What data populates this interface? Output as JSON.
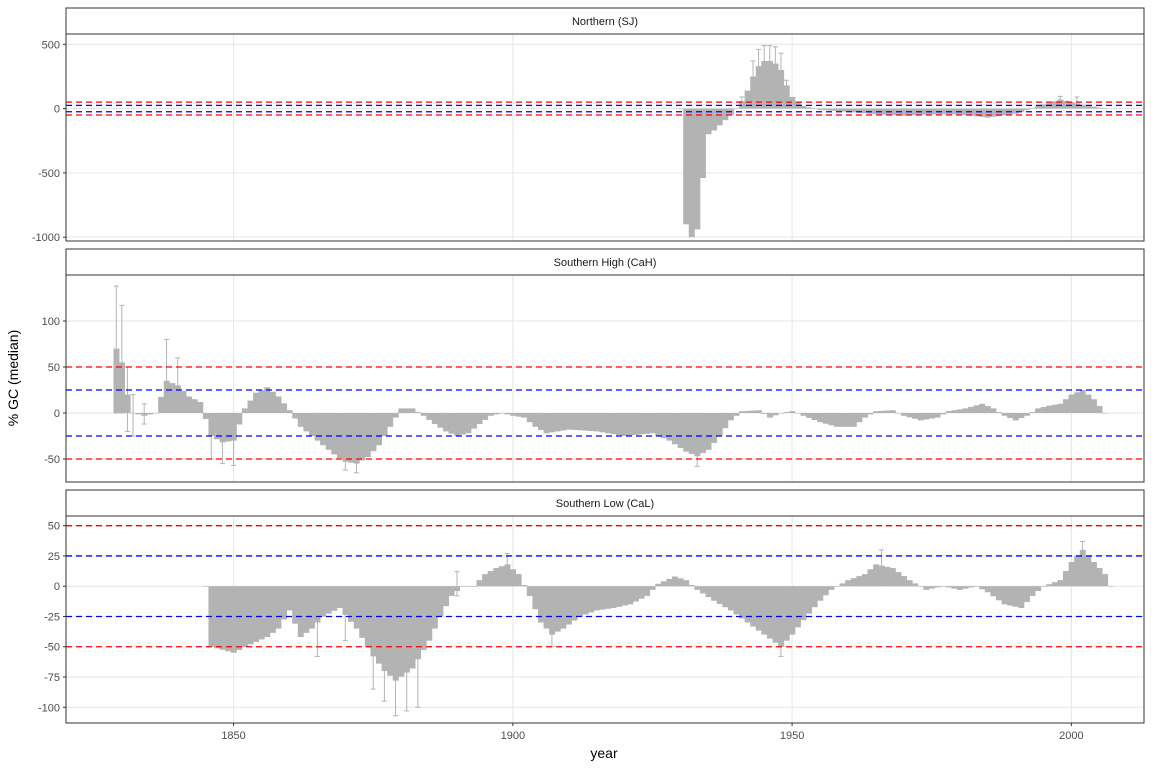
{
  "chart_data": {
    "type": "bar",
    "xlabel": "year",
    "ylabel": "% GC (median)",
    "xlim": [
      1820,
      2013
    ],
    "x_ticks": [
      1850,
      1900,
      1950,
      2000
    ],
    "grid": true,
    "reference_lines": [
      {
        "value": 50,
        "color": "#ff0000"
      },
      {
        "value": 25,
        "color": "#0000ff"
      },
      {
        "value": -25,
        "color": "#0000ff"
      },
      {
        "value": -50,
        "color": "#ff0000"
      }
    ],
    "panels": [
      {
        "title": "Northern (SJ)",
        "ylim": [
          -1030,
          580
        ],
        "y_ticks": [
          500,
          0,
          -500,
          -1000
        ],
        "error_bars": false,
        "segments": [
          {
            "year": 1930,
            "value": 0
          },
          {
            "year": 1931,
            "value": -900
          },
          {
            "year": 1932,
            "value": -1000
          },
          {
            "year": 1933,
            "value": -940
          },
          {
            "year": 1934,
            "value": -540
          },
          {
            "year": 1935,
            "value": -200
          },
          {
            "year": 1936,
            "value": -170
          },
          {
            "year": 1937,
            "value": -130
          },
          {
            "year": 1938,
            "value": -90
          },
          {
            "year": 1939,
            "value": -50
          },
          {
            "year": 1940,
            "value": 0
          },
          {
            "year": 1941,
            "value": 60
          },
          {
            "year": 1942,
            "value": 140
          },
          {
            "year": 1943,
            "value": 250
          },
          {
            "year": 1944,
            "value": 330
          },
          {
            "year": 1945,
            "value": 370
          },
          {
            "year": 1946,
            "value": 370
          },
          {
            "year": 1947,
            "value": 350
          },
          {
            "year": 1948,
            "value": 300
          },
          {
            "year": 1949,
            "value": 180
          },
          {
            "year": 1950,
            "value": 90
          },
          {
            "year": 1952,
            "value": 20
          },
          {
            "year": 1955,
            "value": -10
          },
          {
            "year": 1960,
            "value": -25
          },
          {
            "year": 1965,
            "value": -45
          },
          {
            "year": 1970,
            "value": -55
          },
          {
            "year": 1975,
            "value": -45
          },
          {
            "year": 1980,
            "value": -45
          },
          {
            "year": 1985,
            "value": -70
          },
          {
            "year": 1990,
            "value": -40
          },
          {
            "year": 1994,
            "value": 20
          },
          {
            "year": 1998,
            "value": 70
          },
          {
            "year": 2002,
            "value": 30
          },
          {
            "year": 2006,
            "value": 0
          }
        ],
        "errors": [
          {
            "year": 1941,
            "high": 90
          },
          {
            "year": 1943,
            "high": 370
          },
          {
            "year": 1944,
            "high": 460
          },
          {
            "year": 1945,
            "high": 490
          },
          {
            "year": 1946,
            "high": 490
          },
          {
            "year": 1947,
            "high": 480
          },
          {
            "year": 1948,
            "high": 430
          },
          {
            "year": 1949,
            "high": 220
          },
          {
            "year": 1998,
            "high": 95
          },
          {
            "year": 2001,
            "high": 90
          }
        ]
      },
      {
        "title": "Southern High (CaH)",
        "ylim": [
          -75,
          150
        ],
        "y_ticks": [
          100,
          50,
          0,
          -50
        ],
        "error_bars": true,
        "segments": [
          {
            "year": 1829,
            "value": 70
          },
          {
            "year": 1830,
            "value": 55
          },
          {
            "year": 1831,
            "value": 20
          },
          {
            "year": 1832,
            "value": 0
          },
          {
            "year": 1834,
            "value": -3
          },
          {
            "year": 1836,
            "value": 0
          },
          {
            "year": 1838,
            "value": 35
          },
          {
            "year": 1840,
            "value": 30
          },
          {
            "year": 1842,
            "value": 18
          },
          {
            "year": 1844,
            "value": 12
          },
          {
            "year": 1846,
            "value": -25
          },
          {
            "year": 1848,
            "value": -32
          },
          {
            "year": 1850,
            "value": -30
          },
          {
            "year": 1852,
            "value": 5
          },
          {
            "year": 1854,
            "value": 22
          },
          {
            "year": 1856,
            "value": 28
          },
          {
            "year": 1858,
            "value": 18
          },
          {
            "year": 1860,
            "value": 3
          },
          {
            "year": 1862,
            "value": -15
          },
          {
            "year": 1865,
            "value": -30
          },
          {
            "year": 1868,
            "value": -45
          },
          {
            "year": 1870,
            "value": -53
          },
          {
            "year": 1872,
            "value": -55
          },
          {
            "year": 1874,
            "value": -48
          },
          {
            "year": 1876,
            "value": -35
          },
          {
            "year": 1878,
            "value": -15
          },
          {
            "year": 1880,
            "value": 5
          },
          {
            "year": 1882,
            "value": 5
          },
          {
            "year": 1884,
            "value": -3
          },
          {
            "year": 1886,
            "value": -12
          },
          {
            "year": 1888,
            "value": -20
          },
          {
            "year": 1890,
            "value": -25
          },
          {
            "year": 1892,
            "value": -22
          },
          {
            "year": 1894,
            "value": -12
          },
          {
            "year": 1896,
            "value": -3
          },
          {
            "year": 1898,
            "value": 0
          },
          {
            "year": 1900,
            "value": -3
          },
          {
            "year": 1902,
            "value": -5
          },
          {
            "year": 1904,
            "value": -15
          },
          {
            "year": 1906,
            "value": -22
          },
          {
            "year": 1910,
            "value": -18
          },
          {
            "year": 1915,
            "value": -20
          },
          {
            "year": 1920,
            "value": -25
          },
          {
            "year": 1925,
            "value": -22
          },
          {
            "year": 1928,
            "value": -30
          },
          {
            "year": 1931,
            "value": -42
          },
          {
            "year": 1933,
            "value": -47
          },
          {
            "year": 1935,
            "value": -40
          },
          {
            "year": 1937,
            "value": -25
          },
          {
            "year": 1939,
            "value": -8
          },
          {
            "year": 1941,
            "value": 2
          },
          {
            "year": 1944,
            "value": 3
          },
          {
            "year": 1946,
            "value": -5
          },
          {
            "year": 1948,
            "value": 0
          },
          {
            "year": 1950,
            "value": 2
          },
          {
            "year": 1952,
            "value": -3
          },
          {
            "year": 1955,
            "value": -10
          },
          {
            "year": 1958,
            "value": -15
          },
          {
            "year": 1961,
            "value": -15
          },
          {
            "year": 1963,
            "value": -5
          },
          {
            "year": 1965,
            "value": 2
          },
          {
            "year": 1968,
            "value": 3
          },
          {
            "year": 1970,
            "value": -3
          },
          {
            "year": 1973,
            "value": -8
          },
          {
            "year": 1976,
            "value": -5
          },
          {
            "year": 1978,
            "value": 2
          },
          {
            "year": 1981,
            "value": 5
          },
          {
            "year": 1984,
            "value": 10
          },
          {
            "year": 1986,
            "value": 5
          },
          {
            "year": 1988,
            "value": -3
          },
          {
            "year": 1990,
            "value": -8
          },
          {
            "year": 1992,
            "value": -3
          },
          {
            "year": 1994,
            "value": 5
          },
          {
            "year": 1996,
            "value": 8
          },
          {
            "year": 1998,
            "value": 10
          },
          {
            "year": 2000,
            "value": 20
          },
          {
            "year": 2002,
            "value": 25
          },
          {
            "year": 2004,
            "value": 15
          },
          {
            "year": 2006,
            "value": 0
          }
        ],
        "errors": [
          {
            "year": 1829,
            "low": 0,
            "high": 138
          },
          {
            "year": 1830,
            "low": 0,
            "high": 117
          },
          {
            "year": 1831,
            "low": -20,
            "high": 50
          },
          {
            "year": 1832,
            "low": -25,
            "high": 20
          },
          {
            "year": 1834,
            "low": -12,
            "high": 10
          },
          {
            "year": 1838,
            "low": 5,
            "high": 80
          },
          {
            "year": 1840,
            "low": 5,
            "high": 60
          },
          {
            "year": 1846,
            "low": -50,
            "high": -10
          },
          {
            "year": 1848,
            "low": -55,
            "high": -12
          },
          {
            "year": 1850,
            "low": -57,
            "high": -10
          },
          {
            "year": 1870,
            "low": -62,
            "high": -42
          },
          {
            "year": 1872,
            "low": -65,
            "high": -45
          },
          {
            "year": 1933,
            "low": -58,
            "high": -38
          }
        ]
      },
      {
        "title": "Southern Low (CaL)",
        "ylim": [
          -113,
          58
        ],
        "y_ticks": [
          50,
          25,
          0,
          -25,
          -50,
          -75,
          -100
        ],
        "error_bars": true,
        "segments": [
          {
            "year": 1845,
            "value": 0
          },
          {
            "year": 1846,
            "value": -50
          },
          {
            "year": 1850,
            "value": -55
          },
          {
            "year": 1853,
            "value": -48
          },
          {
            "year": 1856,
            "value": -42
          },
          {
            "year": 1858,
            "value": -35
          },
          {
            "year": 1860,
            "value": -20
          },
          {
            "year": 1862,
            "value": -42
          },
          {
            "year": 1864,
            "value": -35
          },
          {
            "year": 1866,
            "value": -25
          },
          {
            "year": 1869,
            "value": -18
          },
          {
            "year": 1872,
            "value": -35
          },
          {
            "year": 1875,
            "value": -58
          },
          {
            "year": 1877,
            "value": -70
          },
          {
            "year": 1879,
            "value": -78
          },
          {
            "year": 1882,
            "value": -68
          },
          {
            "year": 1885,
            "value": -45
          },
          {
            "year": 1887,
            "value": -25
          },
          {
            "year": 1889,
            "value": -8
          },
          {
            "year": 1891,
            "value": 0
          },
          {
            "year": 1893,
            "value": 0
          },
          {
            "year": 1895,
            "value": 10
          },
          {
            "year": 1897,
            "value": 15
          },
          {
            "year": 1899,
            "value": 18
          },
          {
            "year": 1901,
            "value": 10
          },
          {
            "year": 1903,
            "value": -8
          },
          {
            "year": 1905,
            "value": -30
          },
          {
            "year": 1907,
            "value": -40
          },
          {
            "year": 1909,
            "value": -35
          },
          {
            "year": 1912,
            "value": -25
          },
          {
            "year": 1915,
            "value": -20
          },
          {
            "year": 1918,
            "value": -18
          },
          {
            "year": 1921,
            "value": -15
          },
          {
            "year": 1924,
            "value": -8
          },
          {
            "year": 1926,
            "value": 2
          },
          {
            "year": 1929,
            "value": 8
          },
          {
            "year": 1931,
            "value": 5
          },
          {
            "year": 1933,
            "value": -3
          },
          {
            "year": 1936,
            "value": -12
          },
          {
            "year": 1939,
            "value": -20
          },
          {
            "year": 1942,
            "value": -30
          },
          {
            "year": 1945,
            "value": -40
          },
          {
            "year": 1948,
            "value": -50
          },
          {
            "year": 1950,
            "value": -40
          },
          {
            "year": 1952,
            "value": -28
          },
          {
            "year": 1955,
            "value": -12
          },
          {
            "year": 1957,
            "value": -3
          },
          {
            "year": 1960,
            "value": 5
          },
          {
            "year": 1963,
            "value": 10
          },
          {
            "year": 1965,
            "value": 18
          },
          {
            "year": 1968,
            "value": 15
          },
          {
            "year": 1971,
            "value": 5
          },
          {
            "year": 1974,
            "value": -3
          },
          {
            "year": 1977,
            "value": 0
          },
          {
            "year": 1980,
            "value": -3
          },
          {
            "year": 1983,
            "value": 0
          },
          {
            "year": 1985,
            "value": -5
          },
          {
            "year": 1988,
            "value": -15
          },
          {
            "year": 1991,
            "value": -18
          },
          {
            "year": 1993,
            "value": -8
          },
          {
            "year": 1995,
            "value": 0
          },
          {
            "year": 1998,
            "value": 5
          },
          {
            "year": 2000,
            "value": 20
          },
          {
            "year": 2002,
            "value": 30
          },
          {
            "year": 2004,
            "value": 20
          },
          {
            "year": 2006,
            "value": 10
          },
          {
            "year": 2007,
            "value": 0
          }
        ],
        "errors": [
          {
            "year": 1865,
            "low": -58,
            "high": -20
          },
          {
            "year": 1870,
            "low": -45,
            "high": -15
          },
          {
            "year": 1875,
            "low": -85,
            "high": -40
          },
          {
            "year": 1877,
            "low": -95,
            "high": -50
          },
          {
            "year": 1879,
            "low": -107,
            "high": -60
          },
          {
            "year": 1881,
            "low": -103,
            "high": -55
          },
          {
            "year": 1883,
            "low": -100,
            "high": -50
          },
          {
            "year": 1890,
            "low": -8,
            "high": 12
          },
          {
            "year": 1899,
            "low": 10,
            "high": 27
          },
          {
            "year": 1907,
            "low": -50,
            "high": -30
          },
          {
            "year": 1948,
            "low": -58,
            "high": -40
          },
          {
            "year": 1966,
            "low": 10,
            "high": 30
          },
          {
            "year": 2002,
            "low": 20,
            "high": 37
          }
        ]
      }
    ]
  }
}
